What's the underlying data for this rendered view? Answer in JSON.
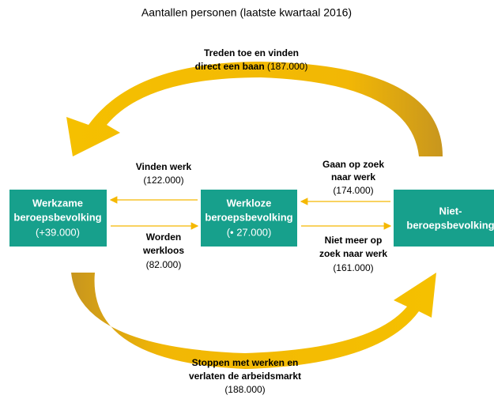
{
  "title": "Aantallen personen (laatste kwartaal 2016)",
  "nodes": [
    {
      "lines": [
        "Werkzame",
        "beroepsbevolking",
        "(+39.000)"
      ]
    },
    {
      "lines": [
        "Werkloze",
        "beroepsbevolking",
        "(• 27.000)"
      ]
    },
    {
      "lines": [
        "Niet-",
        "beroepsbevolking"
      ]
    }
  ],
  "flows": [
    {
      "lines": [
        "Treden toe en vinden",
        "direct een baan"
      ],
      "value": "(187.000)"
    },
    {
      "lines": [
        "Vinden werk"
      ],
      "value": "(122.000)"
    },
    {
      "lines": [
        "Worden",
        "werkloos"
      ],
      "value": "(82.000)"
    },
    {
      "lines": [
        "Gaan op zoek",
        "naar werk"
      ],
      "value": "(174.000)"
    },
    {
      "lines": [
        "Niet meer op",
        "zoek naar werk"
      ],
      "value": "(161.000)"
    },
    {
      "lines": [
        "Stoppen met werken en",
        "verlaten de arbeidsmarkt"
      ],
      "value": "(188.000)"
    }
  ]
}
